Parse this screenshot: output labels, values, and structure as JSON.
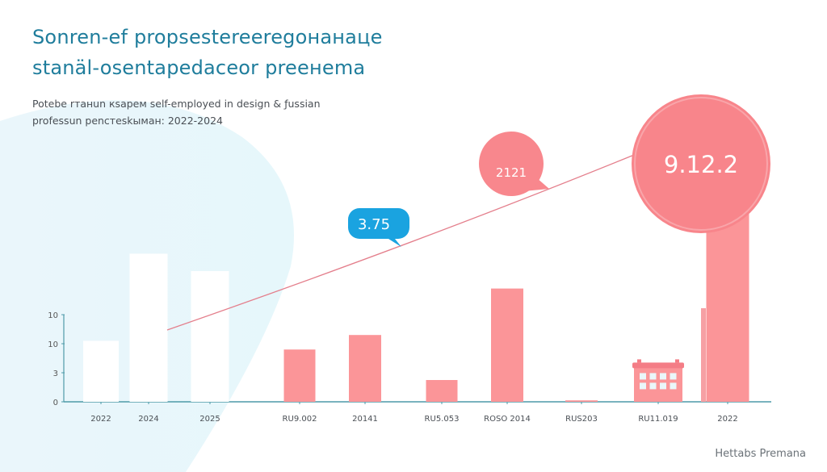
{
  "chart_data": {
    "type": "bar",
    "title": [
      "Sonren-ef propsestereeregoнанаце",
      "stanäl-osentapedaceor preeнema"
    ],
    "subtitle": [
      "Potebe rтaнun кsapeм self-employed in design & ƒussian",
      "professun pencтeskымaн: 2022-2024"
    ],
    "xlabel": "",
    "ylabel": "",
    "ylim": [
      0,
      7
    ],
    "y_ticks": [
      {
        "label": "0",
        "value": 0
      },
      {
        "label": "3",
        "value": 1
      },
      {
        "label": "10",
        "value": 2
      },
      {
        "label": "10",
        "value": 3
      }
    ],
    "categories": [
      "2022",
      "2024",
      "2025",
      "RU9.002",
      "20141",
      "RU5.053",
      "ROSO 2014",
      "RUS203",
      "RU11.019",
      "2022"
    ],
    "values": [
      2.1,
      5.1,
      4.5,
      1.8,
      2.3,
      0.75,
      3.9,
      0.05,
      1.35,
      6.9
    ],
    "bar_styles": [
      "white",
      "white",
      "white",
      "pink",
      "pink",
      "pink",
      "pink",
      "pink",
      "building",
      "pink"
    ],
    "trend_line": {
      "from_category": 1,
      "to_category": 8
    },
    "callouts": [
      {
        "label": "3.75",
        "color": "#1aa3e0"
      },
      {
        "label": "2121",
        "color": "#f8878d"
      },
      {
        "label": "9.12.2",
        "color": "#f8858b"
      }
    ],
    "colors": {
      "bar": "#fb9598",
      "axis": "#4d9aa8",
      "title": "#1f7d9c",
      "trend": "#e47f8c"
    },
    "grid": false
  },
  "footer": "Hettabs Premana"
}
